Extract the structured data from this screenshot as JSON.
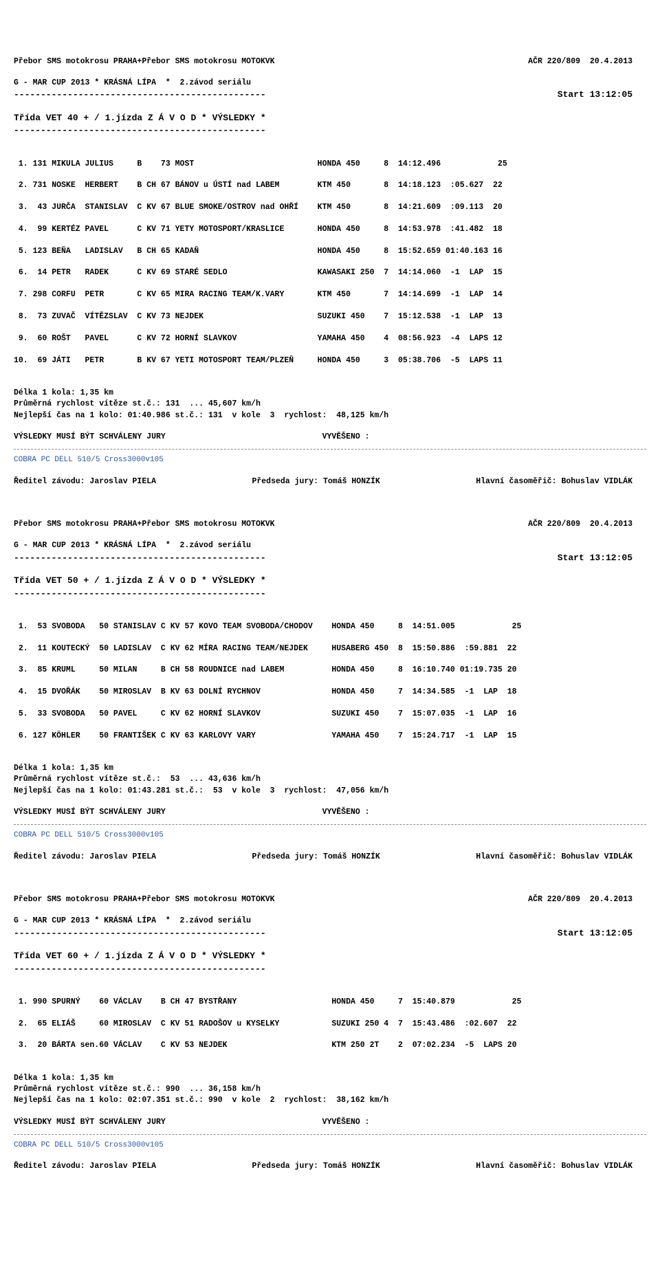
{
  "meta": {
    "event_line1": "Přebor SMS motokrosu PRAHA+Přebor SMS motokrosu MOTOKVK",
    "event_line2": "G - MAR CUP 2013 * KRÁSNÁ LÍPA  *  2.závod seriálu",
    "acr": "AČR 220/809  20.4.2013",
    "dashes": "-----------------------------------------------",
    "start": "Start 13:12:05",
    "cobra": "COBRA PC DELL 510/5 Cross3000v105",
    "director_label": "Ředitel závodu: Jaroslav PIELA",
    "jury_label": "Předseda jury: Tomáš HONZÍK",
    "timer_label": "Hlavní časoměřič: Bohuslav VIDLÁK",
    "vysledky_jury": "VÝSLEDKY MUSÍ BÝT SCHVÁLENY JURY",
    "vyveseno": "VYVĚŠENO :",
    "delka": "Délka 1 kola: 1,35 km"
  },
  "section1": {
    "title": "Třída VET 40 + / 1.jízda Z Á V O D * VÝSLEDKY *",
    "rows": [
      " 1. 131 MIKULA JULIUS     B    73 MOST                          HONDA 450     8  14:12.496            25",
      " 2. 731 NOSKE  HERBERT    B CH 67 BÁNOV u ÚSTÍ nad LABEM        KTM 450       8  14:18.123  :05.627  22",
      " 3.  43 JURČA  STANISLAV  C KV 67 BLUE SMOKE/OSTROV nad OHŘÍ    KTM 450       8  14:21.609  :09.113  20",
      " 4.  99 KERTÉZ PAVEL      C KV 71 YETY MOTOSPORT/KRASLICE       HONDA 450     8  14:53.978  :41.482  18",
      " 5. 123 BEŇA   LADISLAV   B CH 65 KADAŇ                         HONDA 450     8  15:52.659 01:40.163 16",
      " 6.  14 PETR   RADEK      C KV 69 STARÉ SEDLO                   KAWASAKI 250  7  14:14.060  -1  LAP  15",
      " 7. 298 CORFU  PETR       C KV 65 MIRA RACING TEAM/K.VARY       KTM 450       7  14:14.699  -1  LAP  14",
      " 8.  73 ZUVAČ  VÍTĚZSLAV  C KV 73 NEJDEK                        SUZUKI 450    7  15:12.538  -1  LAP  13",
      " 9.  60 ROŠT   PAVEL      C KV 72 HORNÍ SLAVKOV                 YAMAHA 450    4  08:56.923  -4  LAPS 12",
      "10.  69 JÁTI   PETR       B KV 67 YETI MOTOSPORT TEAM/PLZEŇ     HONDA 450     3  05:38.706  -5  LAPS 11"
    ],
    "stat1": "Průměrná rychlost vítěze st.č.: 131  ... 45,607 km/h",
    "stat2": "Nejlepší čas na 1 kolo: 01:40.986 st.č.: 131  v kole  3  rychlost:  48,125 km/h"
  },
  "section2": {
    "title": "Třída VET 50 + / 1.jízda Z Á V O D * VÝSLEDKY *",
    "rows": [
      " 1.  53 SVOBODA   50 STANISLAV C KV 57 KOVO TEAM SVOBODA/CHODOV    HONDA 450     8  14:51.005            25",
      " 2.  11 KOUTECKÝ  50 LADISLAV  C KV 62 MÍRA RACING TEAM/NEJDEK     HUSABERG 450  8  15:50.886  :59.881  22",
      " 3.  85 KRUML     50 MILAN     B CH 58 ROUDNICE nad LABEM          HONDA 450     8  16:10.740 01:19.735 20",
      " 4.  15 DVOŘÁK    50 MIROSLAV  B KV 63 DOLNÍ RYCHNOV               HONDA 450     7  14:34.585  -1  LAP  18",
      " 5.  33 SVOBODA   50 PAVEL     C KV 62 HORNÍ SLAVKOV               SUZUKI 450    7  15:07.035  -1  LAP  16",
      " 6. 127 KÖHLER    50 FRANTIŠEK C KV 63 KARLOVY VARY                YAMAHA 450    7  15:24.717  -1  LAP  15"
    ],
    "stat1": "Průměrná rychlost vítěze st.č.:  53  ... 43,636 km/h",
    "stat2": "Nejlepší čas na 1 kolo: 01:43.281 st.č.:  53  v kole  3  rychlost:  47,056 km/h"
  },
  "section3": {
    "title": "Třída VET 60 + / 1.jízda Z Á V O D * VÝSLEDKY *",
    "rows": [
      " 1. 990 SPURNÝ    60 VÁCLAV    B CH 47 BYSTŘANY                    HONDA 450     7  15:40.879            25",
      " 2.  65 ELIÁŠ     60 MIROSLAV  C KV 51 RADOŠOV u KYSELKY           SUZUKI 250 4  7  15:43.486  :02.607  22",
      " 3.  20 BÁRTA sen.60 VÁCLAV    C KV 53 NEJDEK                      KTM 250 2T    2  07:02.234  -5  LAPS 20"
    ],
    "stat1": "Průměrná rychlost vítěze st.č.: 990  ... 36,158 km/h",
    "stat2": "Nejlepší čas na 1 kolo: 02:07.351 st.č.: 990  v kole  2  rychlost:  38,162 km/h"
  }
}
